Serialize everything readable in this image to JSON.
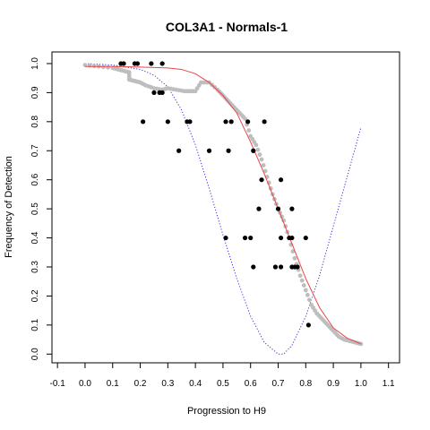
{
  "chart_data": {
    "type": "scatter",
    "title": "COL3A1 - Normals-1",
    "xlabel": "Progression to H9",
    "ylabel": "Frequency of Detection",
    "xlim": [
      -0.12,
      1.14
    ],
    "ylim": [
      -0.03,
      1.04
    ],
    "x_ticks": [
      -0.1,
      0.0,
      0.1,
      0.2,
      0.3,
      0.4,
      0.5,
      0.6,
      0.7,
      0.8,
      0.9,
      1.0,
      1.1
    ],
    "x_tick_labels": [
      "-0.1",
      "0.0",
      "0.1",
      "0.2",
      "0.3",
      "0.4",
      "0.5",
      "0.6",
      "0.7",
      "0.8",
      "0.9",
      "1.0",
      "1.1"
    ],
    "y_ticks": [
      0.0,
      0.1,
      0.2,
      0.3,
      0.4,
      0.5,
      0.6,
      0.7,
      0.8,
      0.9,
      1.0
    ],
    "y_tick_labels": [
      "0.0",
      "0.1",
      "0.2",
      "0.3",
      "0.4",
      "0.5",
      "0.6",
      "0.7",
      "0.8",
      "0.9",
      "1.0"
    ],
    "grid": false,
    "colors": {
      "observed": "#000000",
      "smoothed": "#bebebe",
      "fit": "#e8454a",
      "reference": "#3333dd"
    },
    "series": [
      {
        "style": "black points",
        "points": [
          [
            0.13,
            1.0
          ],
          [
            0.14,
            1.0
          ],
          [
            0.18,
            1.0
          ],
          [
            0.19,
            1.0
          ],
          [
            0.24,
            1.0
          ],
          [
            0.28,
            1.0
          ],
          [
            0.25,
            0.9
          ],
          [
            0.27,
            0.9
          ],
          [
            0.28,
            0.9
          ],
          [
            0.21,
            0.8
          ],
          [
            0.3,
            0.8
          ],
          [
            0.37,
            0.8
          ],
          [
            0.38,
            0.8
          ],
          [
            0.51,
            0.8
          ],
          [
            0.53,
            0.8
          ],
          [
            0.59,
            0.8
          ],
          [
            0.65,
            0.8
          ],
          [
            0.34,
            0.7
          ],
          [
            0.45,
            0.7
          ],
          [
            0.52,
            0.7
          ],
          [
            0.61,
            0.7
          ],
          [
            0.64,
            0.6
          ],
          [
            0.71,
            0.6
          ],
          [
            0.63,
            0.5
          ],
          [
            0.7,
            0.5
          ],
          [
            0.75,
            0.5
          ],
          [
            0.51,
            0.4
          ],
          [
            0.58,
            0.4
          ],
          [
            0.6,
            0.4
          ],
          [
            0.71,
            0.4
          ],
          [
            0.74,
            0.4
          ],
          [
            0.75,
            0.4
          ],
          [
            0.8,
            0.4
          ],
          [
            0.61,
            0.3
          ],
          [
            0.69,
            0.3
          ],
          [
            0.71,
            0.3
          ],
          [
            0.75,
            0.3
          ],
          [
            0.76,
            0.3
          ],
          [
            0.77,
            0.3
          ],
          [
            0.81,
            0.1
          ]
        ]
      },
      {
        "style": "grey smoothed points",
        "points": [
          [
            0.0,
            0.995
          ],
          [
            0.05,
            0.99
          ],
          [
            0.1,
            0.985
          ],
          [
            0.12,
            0.98
          ],
          [
            0.14,
            0.975
          ],
          [
            0.16,
            0.97
          ],
          [
            0.16,
            0.945
          ],
          [
            0.18,
            0.94
          ],
          [
            0.2,
            0.935
          ],
          [
            0.22,
            0.925
          ],
          [
            0.25,
            0.915
          ],
          [
            0.28,
            0.91
          ],
          [
            0.3,
            0.915
          ],
          [
            0.33,
            0.91
          ],
          [
            0.36,
            0.905
          ],
          [
            0.38,
            0.905
          ],
          [
            0.4,
            0.905
          ],
          [
            0.42,
            0.935
          ],
          [
            0.45,
            0.935
          ],
          [
            0.48,
            0.91
          ],
          [
            0.5,
            0.89
          ],
          [
            0.52,
            0.87
          ],
          [
            0.54,
            0.85
          ],
          [
            0.56,
            0.83
          ],
          [
            0.58,
            0.81
          ],
          [
            0.6,
            0.75
          ],
          [
            0.62,
            0.72
          ],
          [
            0.64,
            0.67
          ],
          [
            0.66,
            0.61
          ],
          [
            0.68,
            0.55
          ],
          [
            0.7,
            0.5
          ],
          [
            0.72,
            0.46
          ],
          [
            0.74,
            0.4
          ],
          [
            0.76,
            0.33
          ],
          [
            0.78,
            0.27
          ],
          [
            0.8,
            0.22
          ],
          [
            0.82,
            0.17
          ],
          [
            0.84,
            0.14
          ],
          [
            0.86,
            0.12
          ],
          [
            0.88,
            0.1
          ],
          [
            0.9,
            0.08
          ],
          [
            0.92,
            0.06
          ],
          [
            0.94,
            0.05
          ],
          [
            0.96,
            0.045
          ],
          [
            0.98,
            0.04
          ],
          [
            1.0,
            0.035
          ]
        ]
      },
      {
        "style": "red fitted line",
        "points": [
          [
            0.0,
            0.99
          ],
          [
            0.1,
            0.99
          ],
          [
            0.2,
            0.988
          ],
          [
            0.3,
            0.985
          ],
          [
            0.35,
            0.98
          ],
          [
            0.4,
            0.965
          ],
          [
            0.45,
            0.935
          ],
          [
            0.5,
            0.89
          ],
          [
            0.55,
            0.83
          ],
          [
            0.6,
            0.73
          ],
          [
            0.65,
            0.62
          ],
          [
            0.7,
            0.5
          ],
          [
            0.75,
            0.38
          ],
          [
            0.8,
            0.26
          ],
          [
            0.85,
            0.16
          ],
          [
            0.9,
            0.09
          ],
          [
            0.95,
            0.055
          ],
          [
            1.0,
            0.035
          ]
        ]
      },
      {
        "style": "blue dotted line",
        "points": [
          [
            0.0,
            1.0
          ],
          [
            0.1,
            0.995
          ],
          [
            0.2,
            0.98
          ],
          [
            0.25,
            0.96
          ],
          [
            0.3,
            0.92
          ],
          [
            0.35,
            0.84
          ],
          [
            0.4,
            0.72
          ],
          [
            0.45,
            0.57
          ],
          [
            0.5,
            0.41
          ],
          [
            0.55,
            0.26
          ],
          [
            0.6,
            0.13
          ],
          [
            0.65,
            0.04
          ],
          [
            0.7,
            0.0
          ],
          [
            0.72,
            0.0
          ],
          [
            0.75,
            0.03
          ],
          [
            0.8,
            0.13
          ],
          [
            0.85,
            0.27
          ],
          [
            0.9,
            0.44
          ],
          [
            0.95,
            0.61
          ],
          [
            1.0,
            0.78
          ]
        ]
      }
    ]
  }
}
